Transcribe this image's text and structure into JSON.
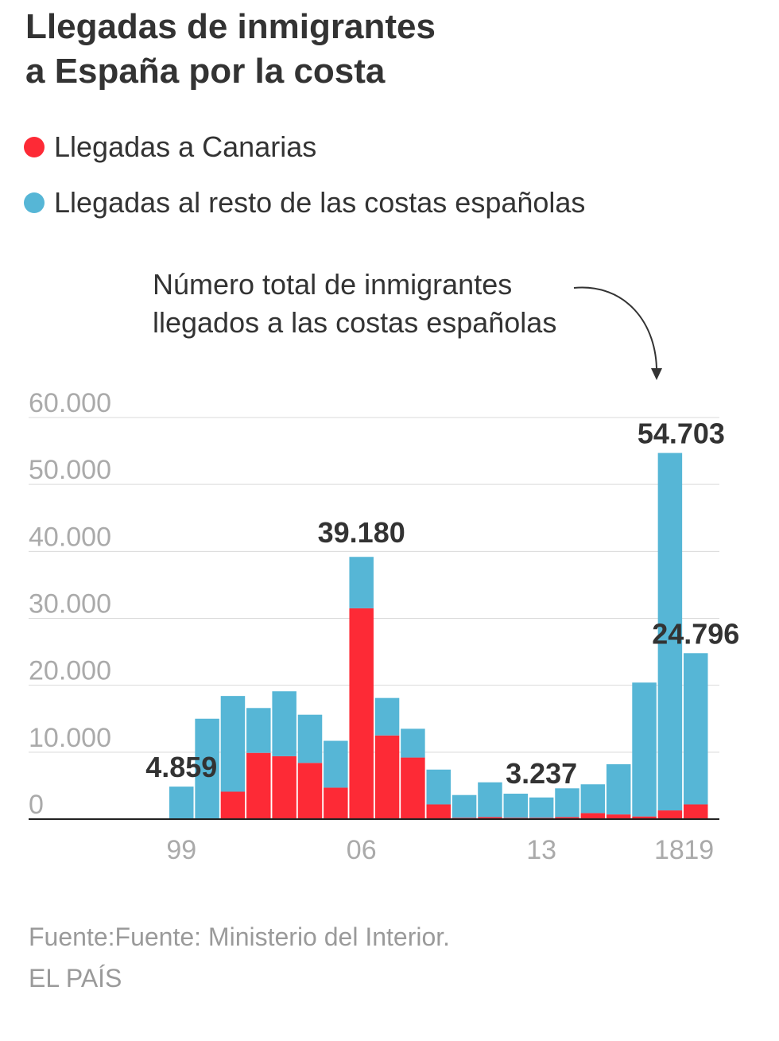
{
  "title": {
    "line1": "Llegadas de inmigrantes",
    "line2": "a España por la costa"
  },
  "legend": [
    {
      "label": "Llegadas a Canarias",
      "color": "#fd2a36"
    },
    {
      "label": "Llegadas al resto de las costas españolas",
      "color": "#56b6d6"
    }
  ],
  "annotation": {
    "line1": "Número total de inmigrantes",
    "line2": "llegados a las costas españolas"
  },
  "chart_data": {
    "type": "bar",
    "stacked": true,
    "categories": [
      "1999",
      "2000",
      "2001",
      "2002",
      "2003",
      "2004",
      "2005",
      "2006",
      "2007",
      "2008",
      "2009",
      "2010",
      "2011",
      "2012",
      "2013",
      "2014",
      "2015",
      "2016",
      "2017",
      "2018",
      "2019"
    ],
    "series": [
      {
        "name": "Llegadas a Canarias",
        "color": "#fd2a36",
        "values": [
          0,
          0,
          4100,
          9900,
          9400,
          8400,
          4700,
          31500,
          12500,
          9200,
          2200,
          200,
          300,
          200,
          200,
          300,
          900,
          700,
          400,
          1300,
          2200
        ]
      },
      {
        "name": "Llegadas al resto de las costas españolas",
        "color": "#56b6d6",
        "values": [
          4859,
          15000,
          14300,
          6700,
          9700,
          7200,
          7000,
          7680,
          5600,
          4300,
          5200,
          3400,
          5200,
          3600,
          3037,
          4300,
          4300,
          7500,
          20000,
          53403,
          22596
        ]
      }
    ],
    "ylim": [
      0,
      60000
    ],
    "yticks": [
      0,
      10000,
      20000,
      30000,
      40000,
      50000,
      60000
    ],
    "ytick_labels": [
      "0",
      "10.000",
      "20.000",
      "30.000",
      "40.000",
      "50.000",
      "60.000"
    ],
    "xtick_labels": [
      {
        "category": "1999",
        "label": "99"
      },
      {
        "category": "2006",
        "label": "06"
      },
      {
        "category": "2013",
        "label": "13"
      },
      {
        "category": "2018",
        "label": "18"
      },
      {
        "category": "2019",
        "label": "19"
      }
    ],
    "data_labels": [
      {
        "category": "1999",
        "label": "4.859"
      },
      {
        "category": "2006",
        "label": "39.180"
      },
      {
        "category": "2013",
        "label": "3.237"
      },
      {
        "category": "2018",
        "label": "54.703"
      },
      {
        "category": "2019",
        "label": "24.796"
      }
    ],
    "grid": true
  },
  "source": {
    "line1": "Fuente:Fuente: Ministerio del Interior.",
    "line2": "EL PAÍS"
  }
}
